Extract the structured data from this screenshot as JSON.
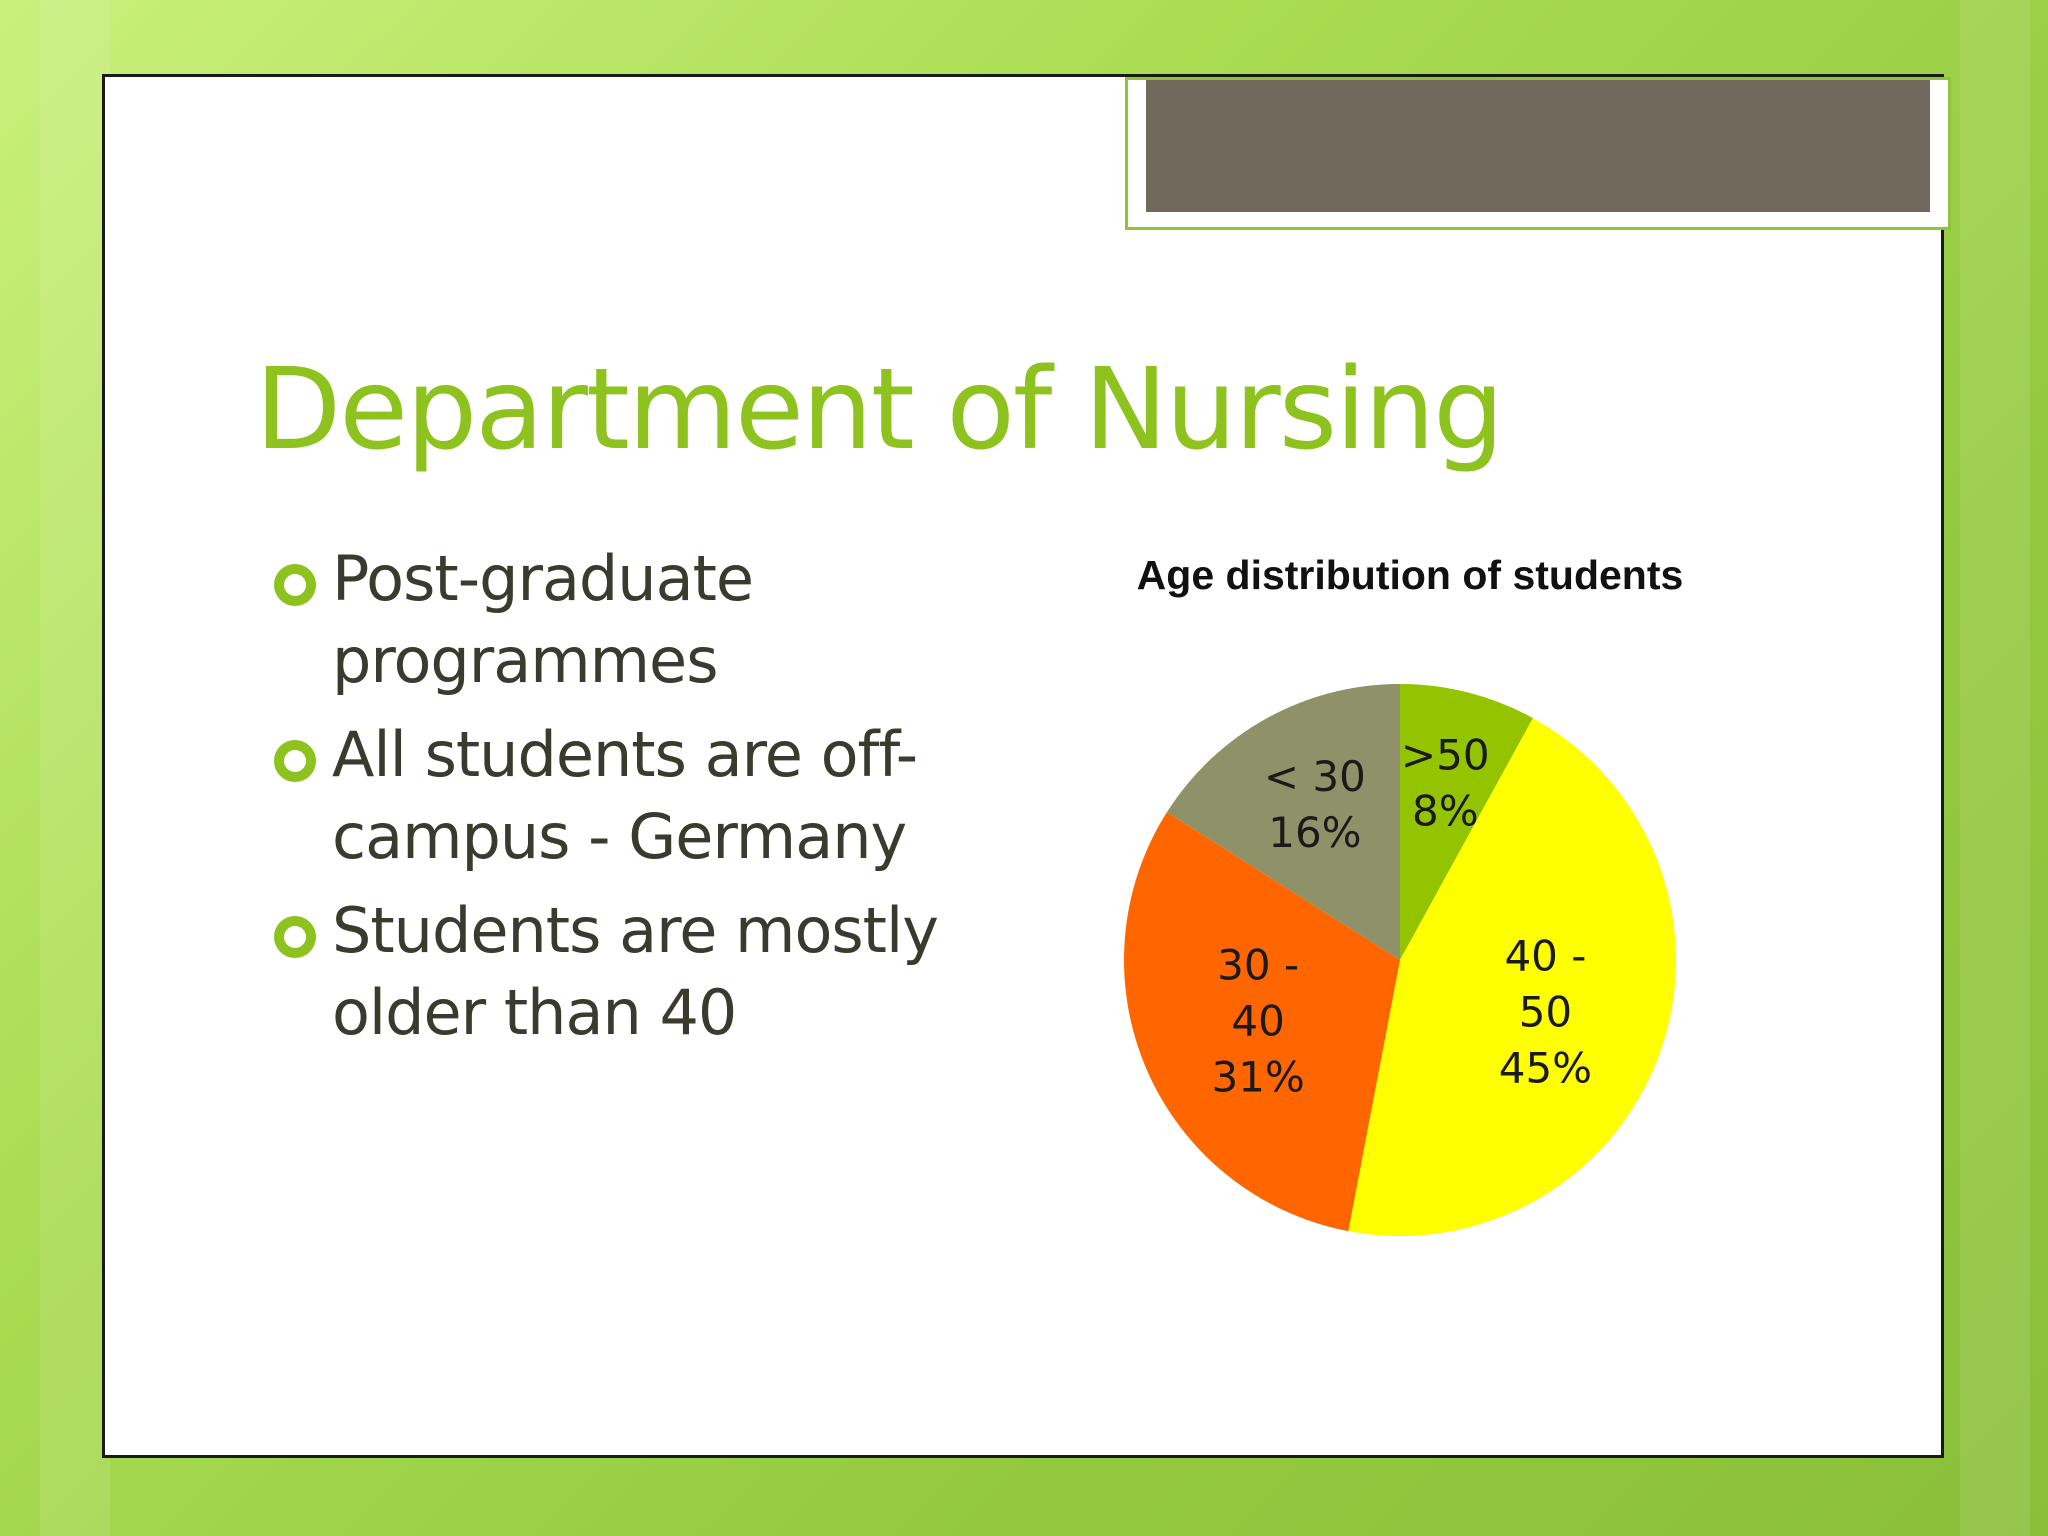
{
  "slide": {
    "title": "Department of Nursing",
    "bullets": [
      {
        "line1": "Post-graduate",
        "line2": "programmes"
      },
      {
        "line1": "All students are off-",
        "line2": "campus - Germany"
      },
      {
        "line1": "Students are mostly",
        "line2": "older than 40"
      }
    ]
  },
  "chart_data": {
    "type": "pie",
    "title": "Age distribution of students",
    "slices": [
      {
        "category": ">50",
        "value": 8,
        "label_lines": [
          ">50",
          "8%"
        ],
        "color": "#94c300"
      },
      {
        "category": "40 - 50",
        "value": 45,
        "label_lines": [
          "40 -",
          "50",
          "45%"
        ],
        "color": "#ffff00"
      },
      {
        "category": "30 - 40",
        "value": 31,
        "label_lines": [
          "30 -",
          "40",
          "31%"
        ],
        "color": "#ff6600"
      },
      {
        "category": "< 30",
        "value": 16,
        "label_lines": [
          "< 30",
          "16%"
        ],
        "color": "#8f9168"
      }
    ],
    "start": "12 o'clock, clockwise",
    "legend": "none (labels on slices)"
  }
}
